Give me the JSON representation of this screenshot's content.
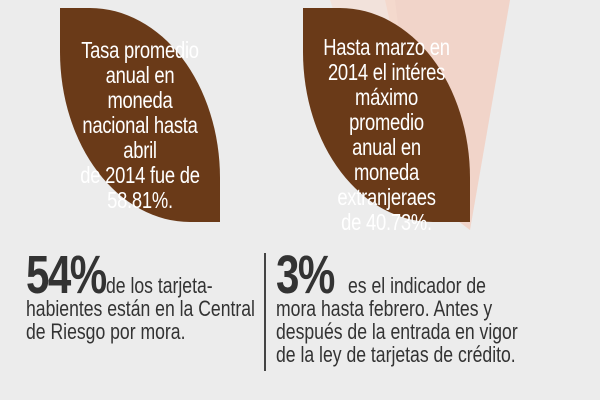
{
  "colors": {
    "background": "#ececec",
    "leaf": "#6a3a18",
    "text_dark": "#333333",
    "deco": "#f3cbbb"
  },
  "left_panel": {
    "text": "Tasa promedio\nanual en moneda\nnacional hasta abril\nde 2014 fue de\n58.81%."
  },
  "right_panel": {
    "text": "Hasta marzo en\n2014 el intéres\nmáximo promedio\nanual en moneda\nextranjeraes\nde 40.73%."
  },
  "stat_left": {
    "value": "54%",
    "lines": [
      "de los tarjeta-",
      "habientes están en la Central",
      "de Riesgo por mora."
    ]
  },
  "stat_right": {
    "value": "3%",
    "lines": [
      "es el indicador de",
      "mora hasta febrero. Antes y",
      "después de la entrada en vigor",
      "de la ley de tarjetas de crédito."
    ]
  }
}
